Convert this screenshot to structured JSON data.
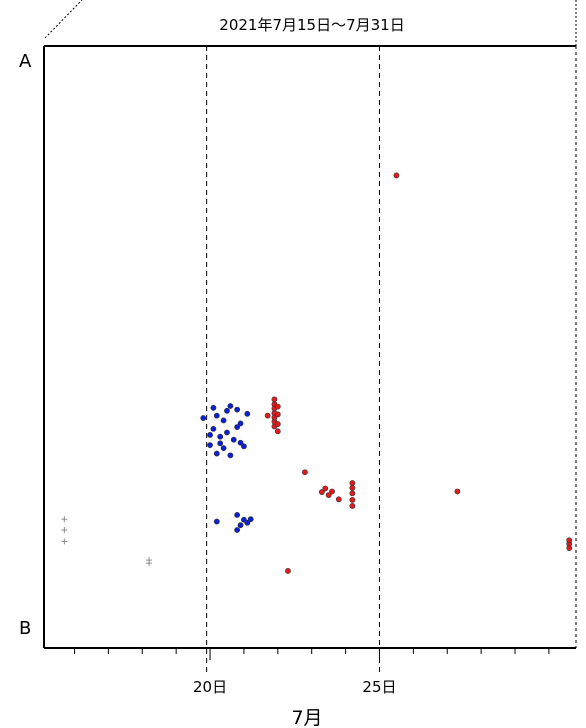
{
  "chart_data": {
    "type": "scatter",
    "title": "2021年7月15日〜7月31日",
    "xlabel": "7月",
    "ylabel": "",
    "y_axis_top_label": "A",
    "y_axis_bottom_label": "B",
    "x_tick_labels": [
      {
        "day": 20,
        "label": "20日"
      },
      {
        "day": 25,
        "label": "25日"
      }
    ],
    "xlim": [
      15.1,
      30.8
    ],
    "ylim": [
      0,
      100
    ],
    "grid": "vertical dashed lines at 19.9 and 25.0",
    "legend": "none",
    "colors": {
      "red": "#e31a1c",
      "blue": "#0a1fd6",
      "gray": "#8c8c8c"
    },
    "series": [
      {
        "color": "red",
        "points": [
          [
            25.5,
            78.5
          ],
          [
            21.7,
            38.6
          ],
          [
            22.8,
            29.2
          ],
          [
            27.3,
            26.0
          ],
          [
            22.3,
            12.8
          ],
          [
            30.6,
            17.3
          ],
          [
            30.6,
            16.6
          ],
          [
            30.6,
            17.9
          ],
          [
            23.4,
            26.5
          ],
          [
            23.5,
            25.4
          ],
          [
            23.6,
            26.0
          ],
          [
            23.8,
            24.7
          ],
          [
            23.3,
            25.9
          ],
          [
            24.2,
            23.6
          ],
          [
            24.2,
            24.6
          ],
          [
            24.2,
            25.7
          ],
          [
            24.2,
            26.6
          ],
          [
            24.2,
            27.4
          ],
          [
            21.9,
            36.8
          ],
          [
            21.9,
            37.6
          ],
          [
            21.9,
            38.3
          ],
          [
            21.9,
            39.0
          ],
          [
            21.9,
            39.8
          ],
          [
            21.9,
            40.5
          ],
          [
            21.9,
            41.3
          ],
          [
            22.0,
            36.0
          ],
          [
            22.0,
            37.2
          ],
          [
            22.0,
            38.8
          ],
          [
            22.0,
            40.1
          ]
        ]
      },
      {
        "color": "blue",
        "points": [
          [
            20.2,
            38.6
          ],
          [
            20.5,
            39.4
          ],
          [
            20.9,
            37.3
          ],
          [
            20.1,
            36.4
          ],
          [
            20.6,
            40.2
          ],
          [
            20.8,
            36.7
          ],
          [
            20.3,
            35.1
          ],
          [
            20.7,
            34.6
          ],
          [
            20.0,
            33.7
          ],
          [
            20.4,
            33.2
          ],
          [
            20.9,
            34.1
          ],
          [
            20.2,
            32.3
          ],
          [
            20.6,
            32.0
          ],
          [
            19.8,
            38.2
          ],
          [
            21.0,
            33.5
          ],
          [
            20.4,
            37.8
          ],
          [
            20.1,
            39.9
          ],
          [
            20.8,
            39.6
          ],
          [
            20.3,
            34.0
          ],
          [
            21.1,
            38.9
          ],
          [
            20.0,
            35.4
          ],
          [
            20.5,
            35.8
          ],
          [
            20.2,
            21.0
          ],
          [
            20.8,
            22.1
          ],
          [
            20.9,
            20.4
          ],
          [
            20.8,
            19.6
          ],
          [
            21.0,
            21.3
          ],
          [
            21.1,
            20.8
          ],
          [
            21.2,
            21.4
          ]
        ]
      },
      {
        "color": "gray",
        "marker": "plus",
        "points": [
          [
            15.7,
            17.7
          ],
          [
            15.7,
            19.6
          ],
          [
            15.7,
            21.4
          ],
          [
            18.2,
            14.1
          ],
          [
            18.2,
            14.6
          ]
        ]
      }
    ]
  }
}
